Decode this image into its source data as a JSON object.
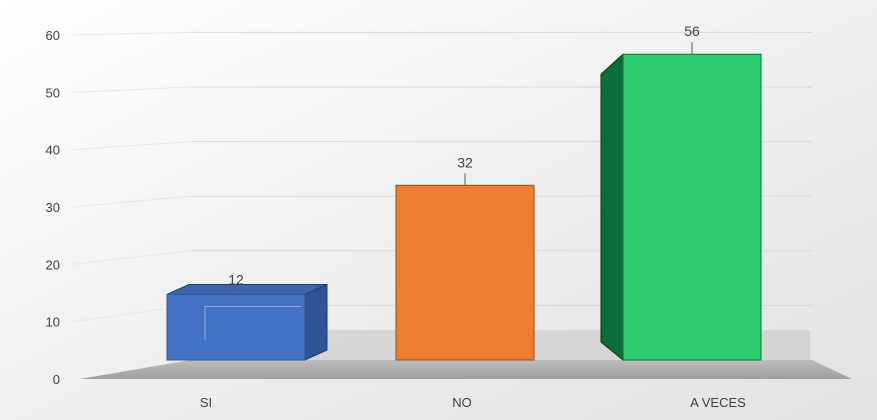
{
  "chart_data": {
    "type": "bar",
    "title": "",
    "xlabel": "",
    "ylabel": "",
    "categories": [
      "SI",
      "NO",
      "A VECES"
    ],
    "values": [
      12,
      32,
      56
    ],
    "data_labels": [
      "12",
      "32",
      "56"
    ],
    "ylim": [
      0,
      60
    ],
    "y_ticks": [
      "0",
      "10",
      "20",
      "30",
      "40",
      "50",
      "60"
    ],
    "grid": true,
    "legend": "none",
    "colors": [
      "#4472C4",
      "#ED7D31",
      "#2ECC71"
    ],
    "colors_dark": [
      "#2F5597",
      "#B85A16",
      "#0B6E3A"
    ]
  }
}
